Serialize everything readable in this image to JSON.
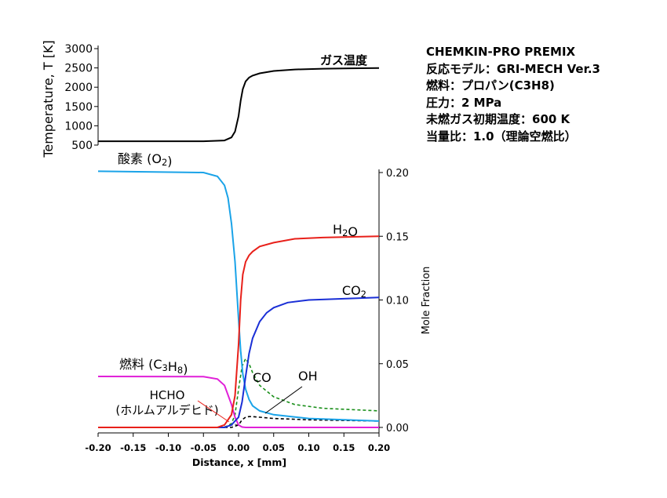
{
  "info_lines": [
    "CHEMKIN-PRO PREMIX",
    "反応モデル：GRI-MECH Ver.3",
    "燃料：プロパン(C3H8)",
    "圧力：2 MPa",
    "未燃ガス初期温度：600 K",
    "当量比：1.0（理論空燃比）"
  ],
  "chart_data": [
    {
      "type": "line",
      "ylabel": "Temperature, T [K]",
      "ylim": [
        500,
        3000
      ],
      "yticks": [
        "3000",
        "2500",
        "2000",
        "1500",
        "1000",
        "500"
      ],
      "xlim": [
        -0.2,
        0.2
      ],
      "series": [
        {
          "name": "ガス温度",
          "color": "#000000",
          "style": "solid",
          "x": [
            -0.2,
            -0.05,
            -0.02,
            -0.01,
            -0.005,
            0.0,
            0.003,
            0.006,
            0.01,
            0.015,
            0.02,
            0.03,
            0.05,
            0.08,
            0.12,
            0.16,
            0.2
          ],
          "y": [
            600,
            600,
            620,
            700,
            850,
            1250,
            1650,
            1950,
            2150,
            2250,
            2300,
            2360,
            2420,
            2460,
            2480,
            2490,
            2495
          ]
        }
      ]
    },
    {
      "type": "line",
      "xlabel": "Distance, x [mm]",
      "ylabel": "Mole Fraction",
      "xlim": [
        -0.2,
        0.2
      ],
      "ylim": [
        0,
        0.2
      ],
      "xticks": [
        "-0.20",
        "-0.15",
        "-0.10",
        "-0.05",
        "0.00",
        "0.05",
        "0.10",
        "0.15",
        "0.20"
      ],
      "yticks": [
        "0.00",
        "0.05",
        "0.10",
        "0.15",
        "0.20"
      ],
      "series": [
        {
          "name": "酸素 (O2)",
          "color": "#1aa3e8",
          "style": "solid",
          "x": [
            -0.2,
            -0.05,
            -0.03,
            -0.02,
            -0.015,
            -0.01,
            -0.005,
            0.0,
            0.003,
            0.006,
            0.01,
            0.015,
            0.02,
            0.03,
            0.05,
            0.1,
            0.2
          ],
          "y": [
            0.201,
            0.2,
            0.197,
            0.19,
            0.18,
            0.16,
            0.13,
            0.085,
            0.06,
            0.042,
            0.03,
            0.022,
            0.017,
            0.013,
            0.01,
            0.007,
            0.005
          ]
        },
        {
          "name": "H2O",
          "color": "#e8201a",
          "style": "solid",
          "x": [
            -0.2,
            -0.03,
            -0.02,
            -0.01,
            -0.005,
            0.0,
            0.003,
            0.006,
            0.01,
            0.015,
            0.02,
            0.03,
            0.05,
            0.08,
            0.12,
            0.2
          ],
          "y": [
            0.0,
            0.0,
            0.002,
            0.01,
            0.025,
            0.065,
            0.1,
            0.12,
            0.13,
            0.135,
            0.138,
            0.142,
            0.145,
            0.148,
            0.149,
            0.15
          ]
        },
        {
          "name": "CO2",
          "color": "#1a2fd6",
          "style": "solid",
          "x": [
            -0.2,
            -0.02,
            -0.01,
            0.0,
            0.005,
            0.01,
            0.015,
            0.02,
            0.03,
            0.04,
            0.05,
            0.07,
            0.1,
            0.15,
            0.2
          ],
          "y": [
            0.0,
            0.0,
            0.002,
            0.008,
            0.02,
            0.04,
            0.058,
            0.07,
            0.083,
            0.09,
            0.094,
            0.098,
            0.1,
            0.101,
            0.102
          ]
        },
        {
          "name": "燃料 (C3H8)",
          "color": "#e020d8",
          "style": "solid",
          "x": [
            -0.2,
            -0.05,
            -0.03,
            -0.02,
            -0.01,
            -0.005,
            0.0,
            0.005,
            0.01,
            0.2
          ],
          "y": [
            0.04,
            0.0398,
            0.038,
            0.033,
            0.018,
            0.008,
            0.002,
            0.0003,
            0.0,
            0.0
          ]
        },
        {
          "name": "CO",
          "color": "#1a8f1a",
          "style": "dashed",
          "x": [
            -0.2,
            -0.02,
            -0.01,
            -0.005,
            0.0,
            0.005,
            0.01,
            0.015,
            0.02,
            0.03,
            0.05,
            0.08,
            0.12,
            0.2
          ],
          "y": [
            0.0,
            0.0,
            0.003,
            0.01,
            0.03,
            0.048,
            0.054,
            0.05,
            0.043,
            0.033,
            0.024,
            0.018,
            0.015,
            0.013
          ]
        },
        {
          "name": "OH",
          "color": "#000000",
          "style": "dashed",
          "x": [
            -0.2,
            -0.01,
            0.0,
            0.005,
            0.01,
            0.015,
            0.02,
            0.03,
            0.05,
            0.1,
            0.2
          ],
          "y": [
            0.0,
            0.0,
            0.002,
            0.006,
            0.008,
            0.0085,
            0.0085,
            0.008,
            0.007,
            0.006,
            0.005
          ]
        },
        {
          "name": "HCHO\n(ホルムアルデヒド)",
          "color": "#6a6a6a",
          "style": "dashed",
          "x": [
            -0.2,
            -0.03,
            -0.015,
            -0.01,
            -0.005,
            0.0,
            0.005,
            0.01,
            0.2
          ],
          "y": [
            0.0,
            0.0,
            0.0008,
            0.0018,
            0.0024,
            0.0015,
            0.0004,
            0.0,
            0.0
          ]
        }
      ]
    }
  ]
}
